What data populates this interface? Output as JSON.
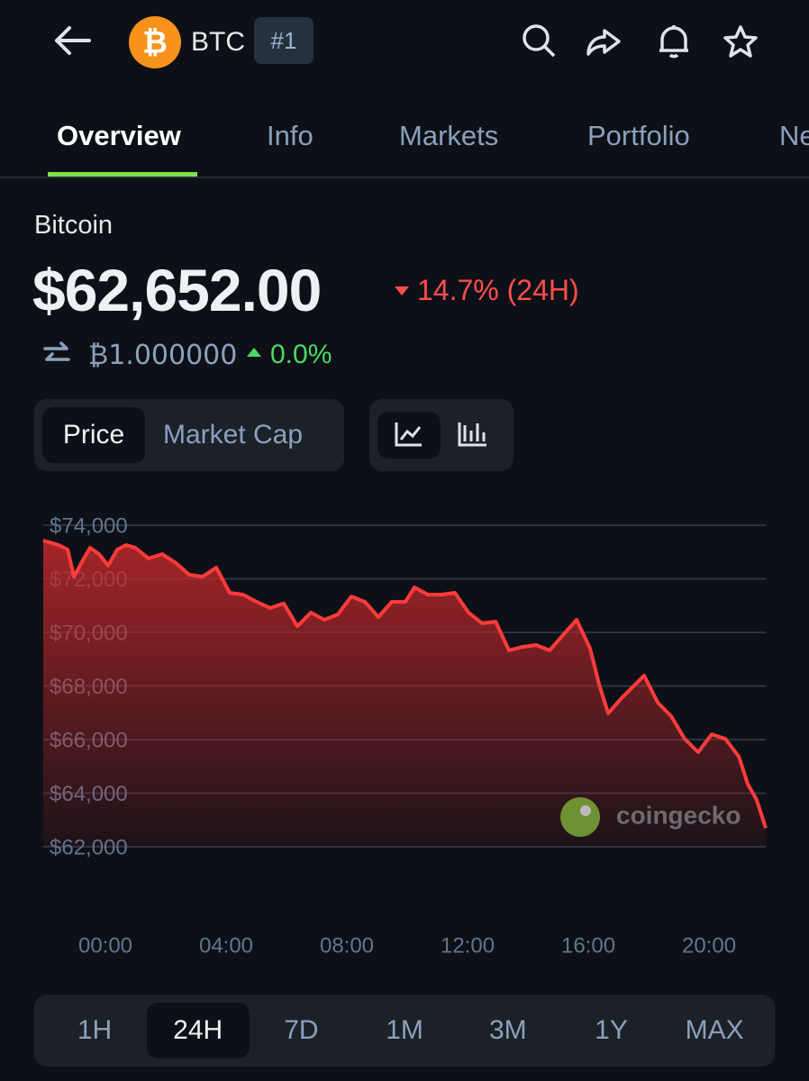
{
  "header": {
    "symbol": "BTC",
    "rank": "#1"
  },
  "tabs": [
    "Overview",
    "Info",
    "Markets",
    "Portfolio",
    "Ne"
  ],
  "coin": {
    "name": "Bitcoin",
    "price": "$62,652.00",
    "change": "14.7% (24H)",
    "btc_price": "₿1.000000",
    "btc_change": "0.0%"
  },
  "toggles": [
    "Price",
    "Market Cap"
  ],
  "chart_data": {
    "type": "line",
    "color": "#ff3b3b",
    "grid": true,
    "watermark": "coingecko",
    "x": [
      -2.06,
      -1.55,
      -1.25,
      -1.04,
      -0.75,
      -0.51,
      -0.21,
      0.09,
      0.39,
      0.69,
      0.99,
      1.43,
      1.88,
      2.33,
      2.78,
      3.22,
      3.67,
      4.12,
      4.57,
      5.01,
      5.46,
      5.91,
      6.36,
      6.81,
      7.25,
      7.7,
      8.15,
      8.6,
      9.04,
      9.49,
      9.94,
      10.24,
      10.69,
      11.13,
      11.58,
      12.03,
      12.48,
      12.93,
      13.37,
      13.82,
      14.27,
      14.72,
      15.16,
      15.61,
      16.06,
      16.36,
      16.66,
      17.1,
      17.55,
      17.85,
      18.3,
      18.75,
      19.19,
      19.64,
      20.09,
      20.54,
      20.99,
      21.28,
      21.58,
      21.88
    ],
    "values": [
      73430,
      73260,
      73090,
      72080,
      72690,
      73160,
      72920,
      72490,
      73090,
      73260,
      73160,
      72760,
      72920,
      72590,
      72150,
      72080,
      72420,
      71480,
      71410,
      71140,
      70910,
      71080,
      70230,
      70740,
      70470,
      70670,
      71340,
      71140,
      70570,
      71140,
      71140,
      71680,
      71410,
      71410,
      71480,
      70740,
      70340,
      70400,
      69330,
      69460,
      69530,
      69330,
      69900,
      70470,
      69400,
      68050,
      66980,
      67550,
      68050,
      68390,
      67380,
      66870,
      66030,
      65530,
      66200,
      66030,
      65360,
      64350,
      63750,
      62700
    ],
    "xlim": [
      -2.06,
      21.88
    ],
    "xticks": [
      {
        "value": 0,
        "label": "00:00"
      },
      {
        "value": 4,
        "label": "04:00"
      },
      {
        "value": 8,
        "label": "08:00"
      },
      {
        "value": 12,
        "label": "12:00"
      },
      {
        "value": 16,
        "label": "16:00"
      },
      {
        "value": 20,
        "label": "20:00"
      }
    ],
    "ylim": [
      62000,
      74000
    ],
    "yticks": [
      {
        "value": 74000,
        "label": "$74,000"
      },
      {
        "value": 72000,
        "label": "$72,000"
      },
      {
        "value": 70000,
        "label": "$70,000"
      },
      {
        "value": 68000,
        "label": "$68,000"
      },
      {
        "value": 66000,
        "label": "$66,000"
      },
      {
        "value": 64000,
        "label": "$64,000"
      },
      {
        "value": 62000,
        "label": "$62,000"
      }
    ]
  },
  "ranges": [
    "1H",
    "24H",
    "7D",
    "1M",
    "3M",
    "1Y",
    "MAX"
  ]
}
